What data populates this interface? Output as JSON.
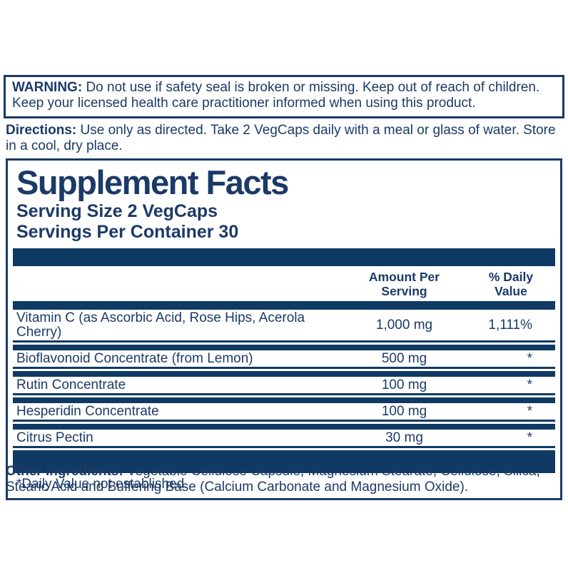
{
  "colors": {
    "navy_bar": "#0e3a63",
    "navy_text": "#1c3a67",
    "background": "#ffffff"
  },
  "warning": {
    "label": "WARNING:",
    "text": "Do not use if safety seal is broken or missing. Keep out of reach of children. Keep your licensed health care practitioner informed when using this product."
  },
  "directions": {
    "label": "Directions:",
    "text": "Use only as directed. Take 2 VegCaps daily with a meal or glass of water. Store in a cool, dry place."
  },
  "supplement_facts": {
    "title": "Supplement Facts",
    "serving_size": "Serving Size 2 VegCaps",
    "servings_per_container": "Servings Per Container 30",
    "columns": {
      "amount": "Amount Per Serving",
      "daily_value": "% Daily Value"
    },
    "rows": [
      {
        "name": "Vitamin C (as Ascorbic Acid, Rose Hips, Acerola Cherry)",
        "amount": "1,000 mg",
        "daily_value": "1,111%"
      },
      {
        "name": "Bioflavonoid Concentrate (from Lemon)",
        "amount": "500 mg",
        "daily_value": "*"
      },
      {
        "name": "Rutin Concentrate",
        "amount": "100 mg",
        "daily_value": "*"
      },
      {
        "name": "Hesperidin Concentrate",
        "amount": "100 mg",
        "daily_value": "*"
      },
      {
        "name": "Citrus Pectin",
        "amount": "30 mg",
        "daily_value": "*"
      }
    ],
    "footnote": "*Daily Value not established."
  },
  "other_ingredients": {
    "label": "Other Ingredients:",
    "text": "Vegetable Cellulose Capsule, Magnesium Stearate, Cellulose, Silica, Stearic Acid and Buffering Base (Calcium Carbonate and Magnesium Oxide)."
  }
}
